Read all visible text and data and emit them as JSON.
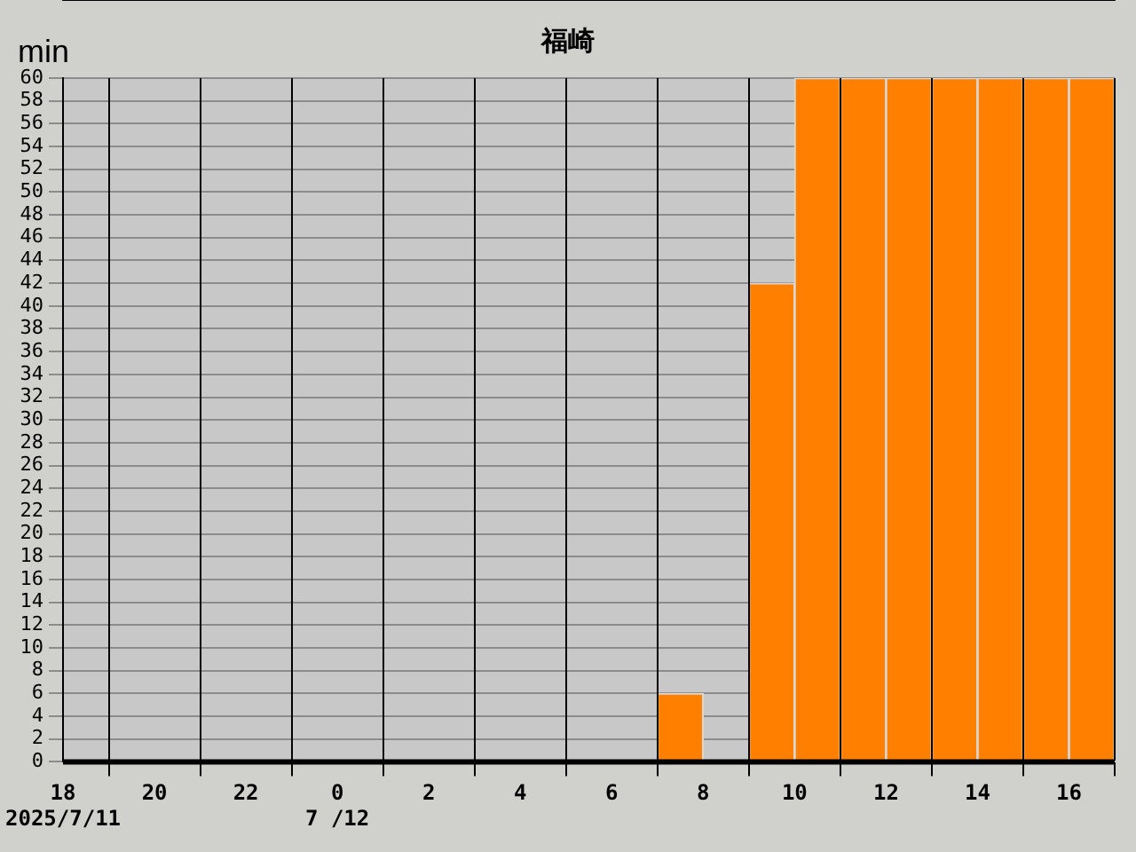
{
  "chart_data": {
    "type": "bar",
    "title": "福崎",
    "ylabel": "min",
    "x": [
      "2025-07-11T18:30",
      "2025-07-11T19:30",
      "2025-07-11T20:30",
      "2025-07-11T21:30",
      "2025-07-11T22:30",
      "2025-07-11T23:30",
      "2025-07-12T00:30",
      "2025-07-12T01:30",
      "2025-07-12T02:30",
      "2025-07-12T03:30",
      "2025-07-12T04:30",
      "2025-07-12T05:30",
      "2025-07-12T06:30",
      "2025-07-12T07:30",
      "2025-07-12T08:30",
      "2025-07-12T09:30",
      "2025-07-12T10:30",
      "2025-07-12T11:30",
      "2025-07-12T12:30",
      "2025-07-12T13:30",
      "2025-07-12T14:30",
      "2025-07-12T15:30",
      "2025-07-12T16:30"
    ],
    "values": [
      0,
      0,
      0,
      0,
      0,
      0,
      0,
      0,
      0,
      0,
      0,
      0,
      0,
      6,
      0,
      42,
      60,
      60,
      60,
      60,
      60,
      60,
      60
    ],
    "color": "#ff8000",
    "xlim": [
      "2025-07-11T18:00",
      "2025-07-12T17:00"
    ],
    "xticks": [
      {
        "value": "2025-07-11T18:00",
        "label": "18\n2025/7/11"
      },
      {
        "value": "2025-07-11T20:00",
        "label": "20"
      },
      {
        "value": "2025-07-11T22:00",
        "label": "22"
      },
      {
        "value": "2025-07-12T00:00",
        "label": "0\n7 /12"
      },
      {
        "value": "2025-07-12T02:00",
        "label": "2"
      },
      {
        "value": "2025-07-12T04:00",
        "label": "4"
      },
      {
        "value": "2025-07-12T06:00",
        "label": "6"
      },
      {
        "value": "2025-07-12T08:00",
        "label": "8"
      },
      {
        "value": "2025-07-12T10:00",
        "label": "10"
      },
      {
        "value": "2025-07-12T12:00",
        "label": "12"
      },
      {
        "value": "2025-07-12T14:00",
        "label": "14"
      },
      {
        "value": "2025-07-12T16:00",
        "label": "16"
      }
    ],
    "ylim": [
      0,
      60
    ],
    "yticks": [
      0,
      2,
      4,
      6,
      8,
      10,
      12,
      14,
      16,
      18,
      20,
      22,
      24,
      26,
      28,
      30,
      32,
      34,
      36,
      38,
      40,
      42,
      44,
      46,
      48,
      50,
      52,
      54,
      56,
      58,
      60
    ],
    "grid": true
  }
}
